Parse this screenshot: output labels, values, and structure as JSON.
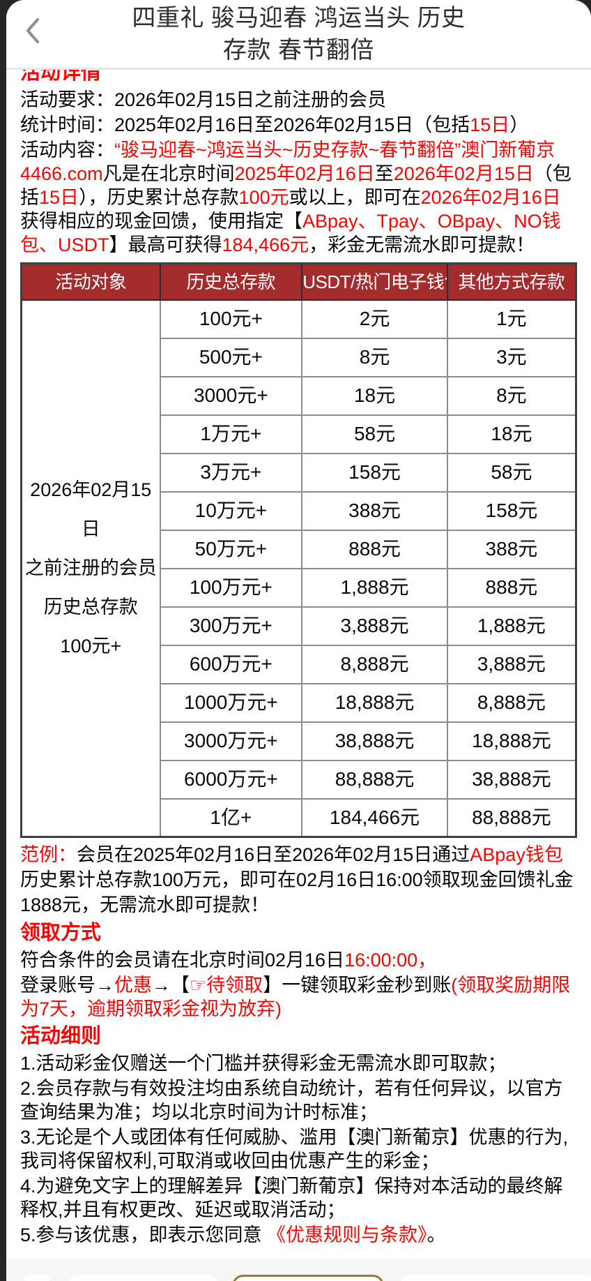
{
  "colors": {
    "accent_red": "#FE0000",
    "table_header_bg": "#A42C2C",
    "footer_gold_border": "#9C7A33"
  },
  "header": {
    "title_line1": "四重礼 骏马迎春 鸿运当头 历史",
    "title_line2": "存款 春节翻倍",
    "back_icon": "chevron-left"
  },
  "sections": {
    "details_heading": "活动详情",
    "claim_heading": "领取方式",
    "rules_heading": "活动细则"
  },
  "paragraphs": {
    "requirement": [
      {
        "t": "活动要求：2026年02月15日之前注册的会员"
      }
    ],
    "stat_time": [
      {
        "t": "统计时间：2025年02月16日至2026年02月15日（包括"
      },
      {
        "t": "15日",
        "c": "red"
      },
      {
        "t": "）"
      }
    ],
    "content": [
      {
        "t": "活动内容："
      },
      {
        "t": "“骏马迎春~鸿运当头~历史存款~春节翻倍”",
        "c": "red"
      },
      {
        "t": "澳门新葡京4466.com",
        "c": "red"
      },
      {
        "t": "凡是在北京时间"
      },
      {
        "t": "2025年02月16日",
        "c": "red"
      },
      {
        "t": "至"
      },
      {
        "t": "2026年02月15日",
        "c": "red"
      },
      {
        "t": "（包括"
      },
      {
        "t": "15日",
        "c": "red"
      },
      {
        "t": "），历史累计总存款"
      },
      {
        "t": "100元",
        "c": "red"
      },
      {
        "t": "或以上，即可在"
      },
      {
        "t": "2026年02月16日",
        "c": "red"
      },
      {
        "t": "获得相应的现金回馈，使用指定【"
      },
      {
        "t": "ABpay、Tpay、OBpay、NO钱包、USDT",
        "c": "red"
      },
      {
        "t": "】最高可获得"
      },
      {
        "t": "184,466元",
        "c": "red"
      },
      {
        "t": "，彩金无需流水即可提款！"
      }
    ],
    "example": [
      {
        "t": "范例：",
        "c": "red"
      },
      {
        "t": "会员在2025年02月16日至2026年02月15日通过"
      },
      {
        "t": "ABpay钱包",
        "c": "red"
      },
      {
        "t": "历史累计总存款100万元，即可在02月16日16:00领取现金回馈礼金1888元，无需流水即可提款！"
      }
    ],
    "claim_line1": [
      {
        "t": "符合条件的会员请在北京时间02月16日"
      },
      {
        "t": "16:00:00，",
        "c": "red"
      }
    ],
    "claim_line2": [
      {
        "t": "登录账号→"
      },
      {
        "t": "优惠",
        "c": "red"
      },
      {
        "t": "→【"
      },
      {
        "t": "☞待领取",
        "c": "red"
      },
      {
        "t": "】一键领取彩金秒到账"
      },
      {
        "t": "(领取奖励期限为7天，逾期领取彩金视为放弃)",
        "c": "red"
      }
    ],
    "rule1": [
      {
        "t": "1.活动彩金仅赠送一个门槛并获得彩金无需流水即可取款；"
      }
    ],
    "rule2": [
      {
        "t": "2.会员存款与有效投注均由系统自动统计，若有任何异议，以官方查询结果为准；均以北京时间为计时标准；"
      }
    ],
    "rule3": [
      {
        "t": "3.无论是个人或团体有任何威胁、滥用【澳门新葡京】优惠的行为,我司将保留权利,可取消或收回由优惠产生的彩金；"
      }
    ],
    "rule4": [
      {
        "t": "4.为避免文字上的理解差异【澳门新葡京】保持对本活动的最终解释权,并且有权更改、延迟或取消活动；"
      }
    ],
    "rule5": [
      {
        "t": "5.参与该优惠，即表示您同意 "
      },
      {
        "t": "《优惠规则与条款》",
        "c": "red",
        "link": true
      },
      {
        "t": "。"
      }
    ]
  },
  "table": {
    "headers": [
      "活动对象",
      "历史总存款",
      "USDT/热门电子钱包",
      "其他方式存款"
    ],
    "target_lines": [
      "2026年02月15日",
      "之前注册的会员",
      "历史总存款",
      "100元+"
    ],
    "rows": [
      [
        "100元+",
        "2元",
        "1元"
      ],
      [
        "500元+",
        "8元",
        "3元"
      ],
      [
        "3000元+",
        "18元",
        "8元"
      ],
      [
        "1万元+",
        "58元",
        "18元"
      ],
      [
        "3万元+",
        "158元",
        "58元"
      ],
      [
        "10万元+",
        "388元",
        "158元"
      ],
      [
        "50万元+",
        "888元",
        "388元"
      ],
      [
        "100万元+",
        "1,888元",
        "888元"
      ],
      [
        "300万元+",
        "3,888元",
        "1,888元"
      ],
      [
        "600万元+",
        "8,888元",
        "3,888元"
      ],
      [
        "1000万元+",
        "18,888元",
        "8,888元"
      ],
      [
        "3000万元+",
        "38,888元",
        "18,888元"
      ],
      [
        "6000万元+",
        "88,888元",
        "38,888元"
      ],
      [
        "1亿+",
        "184,466元",
        "88,888元"
      ]
    ]
  }
}
